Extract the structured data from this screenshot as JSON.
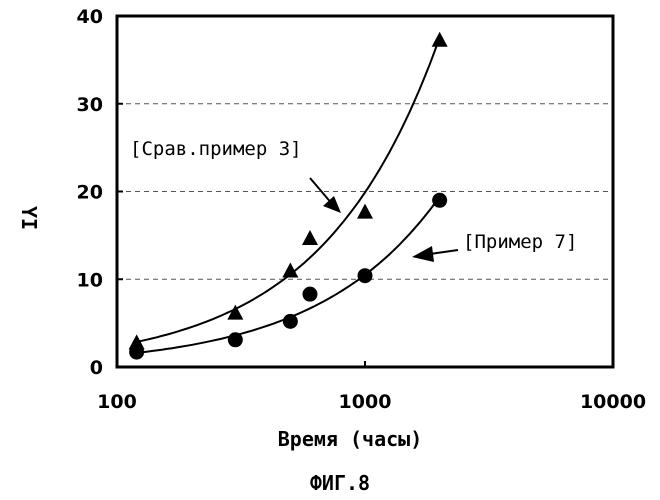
{
  "chart_data": {
    "type": "scatter",
    "caption": "ФИГ.8",
    "xlabel": "Время (часы)",
    "ylabel": "YI",
    "x_scale": "log",
    "xlim": [
      100,
      10000
    ],
    "ylim": [
      0,
      40
    ],
    "x_ticks": [
      100,
      1000,
      10000
    ],
    "y_ticks": [
      0,
      10,
      20,
      30,
      40
    ],
    "grid": "horizontal dashed at 10, 20, 30",
    "series": [
      {
        "name": "[Срав.пример 3]",
        "marker": "triangle",
        "x": [
          120,
          300,
          500,
          600,
          1000,
          2000
        ],
        "y": [
          2.8,
          6.2,
          11,
          14.7,
          17.7,
          37.3
        ],
        "fit_curve": true
      },
      {
        "name": "[Пример 7]",
        "marker": "circle",
        "x": [
          120,
          300,
          500,
          600,
          1000,
          2000
        ],
        "y": [
          1.7,
          3.1,
          5.2,
          8.3,
          10.4,
          19
        ]
      }
    ],
    "colors": {
      "ink": "#000000",
      "background": "#ffffff",
      "grid": "#555555"
    }
  }
}
